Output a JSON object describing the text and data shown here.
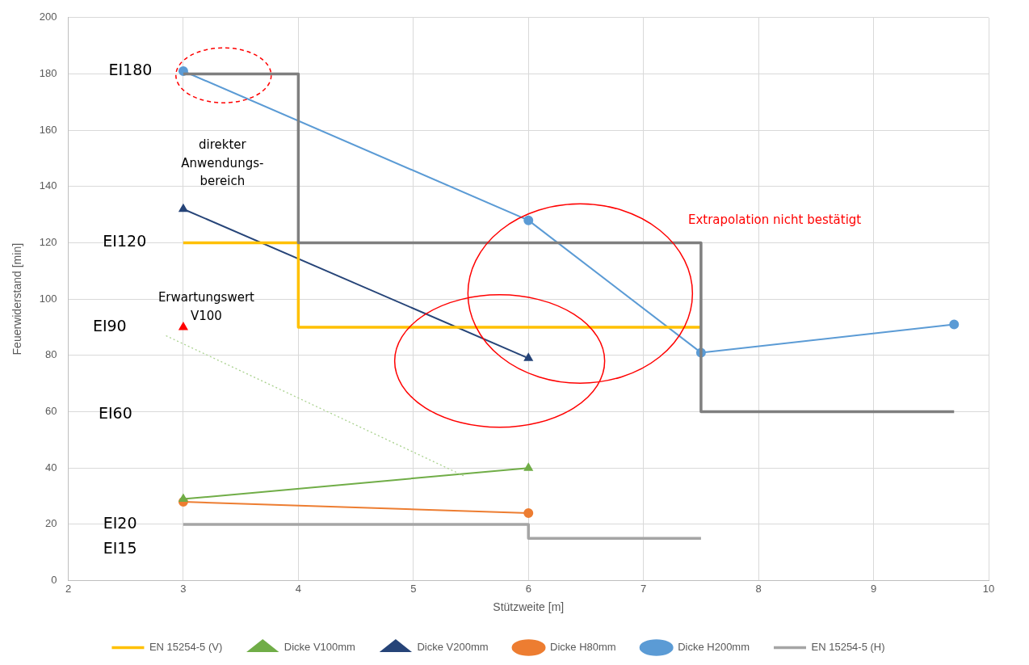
{
  "chart_data": {
    "type": "line",
    "xlabel": "Stützweite [m]",
    "ylabel": "Feuerwiderstand [min]",
    "xlim": [
      2,
      10
    ],
    "xticks": [
      2,
      3,
      4,
      5,
      6,
      7,
      8,
      9,
      10
    ],
    "ylim": [
      0,
      200
    ],
    "yticks": [
      0,
      20,
      40,
      60,
      80,
      100,
      120,
      140,
      160,
      180,
      200
    ],
    "grid": true,
    "legend": "bottom",
    "series": [
      {
        "name": "EN 15254-5 (H)",
        "color": "#a5a5a5",
        "marker": "none",
        "x": [
          3,
          6,
          6,
          7.5
        ],
        "values": [
          20,
          20,
          15,
          15
        ]
      },
      {
        "name": "Dicke H200mm",
        "color": "#5b9bd5",
        "marker": "circle",
        "x": [
          3,
          6,
          7.5,
          9.7
        ],
        "values": [
          181,
          128,
          81,
          91
        ]
      },
      {
        "name": "Dicke H80mm",
        "color": "#ed7d31",
        "marker": "circle",
        "x": [
          3,
          6
        ],
        "values": [
          28,
          24
        ]
      },
      {
        "name": "Dicke V200mm",
        "color": "#264478",
        "marker": "triangle",
        "x": [
          3,
          6
        ],
        "values": [
          132,
          79
        ]
      },
      {
        "name": "Dicke V100mm",
        "color": "#70ad47",
        "marker": "triangle",
        "x": [
          3,
          6
        ],
        "values": [
          29,
          40
        ]
      },
      {
        "name": "EN 15254-5 (V)",
        "color": "#ffc000",
        "marker": "none",
        "x": [
          3,
          4,
          4,
          7.5
        ],
        "values": [
          120,
          120,
          90,
          90
        ]
      },
      {
        "color": "#7f7f7f",
        "marker": "none",
        "x": [
          3,
          4,
          4,
          7.5,
          7.5,
          9.7
        ],
        "values": [
          180,
          180,
          120,
          120,
          60,
          60
        ]
      },
      {
        "type": "scatter",
        "color": "#ff0000",
        "marker": "triangle",
        "x": [
          3
        ],
        "values": [
          90
        ]
      },
      {
        "type": "line",
        "color": "#a9d18e",
        "marker": "none",
        "line_style": "dotted",
        "x": [
          2.85,
          5.45
        ],
        "values": [
          87,
          37
        ]
      }
    ],
    "annotations": [
      "EI180",
      "EI120",
      "EI90",
      "EI60",
      "EI20",
      "EI15",
      "direkter\nAnwendungs-\nbereich",
      "Erwartungswert\nV100",
      "Extrapolation nicht bestätigt"
    ]
  }
}
